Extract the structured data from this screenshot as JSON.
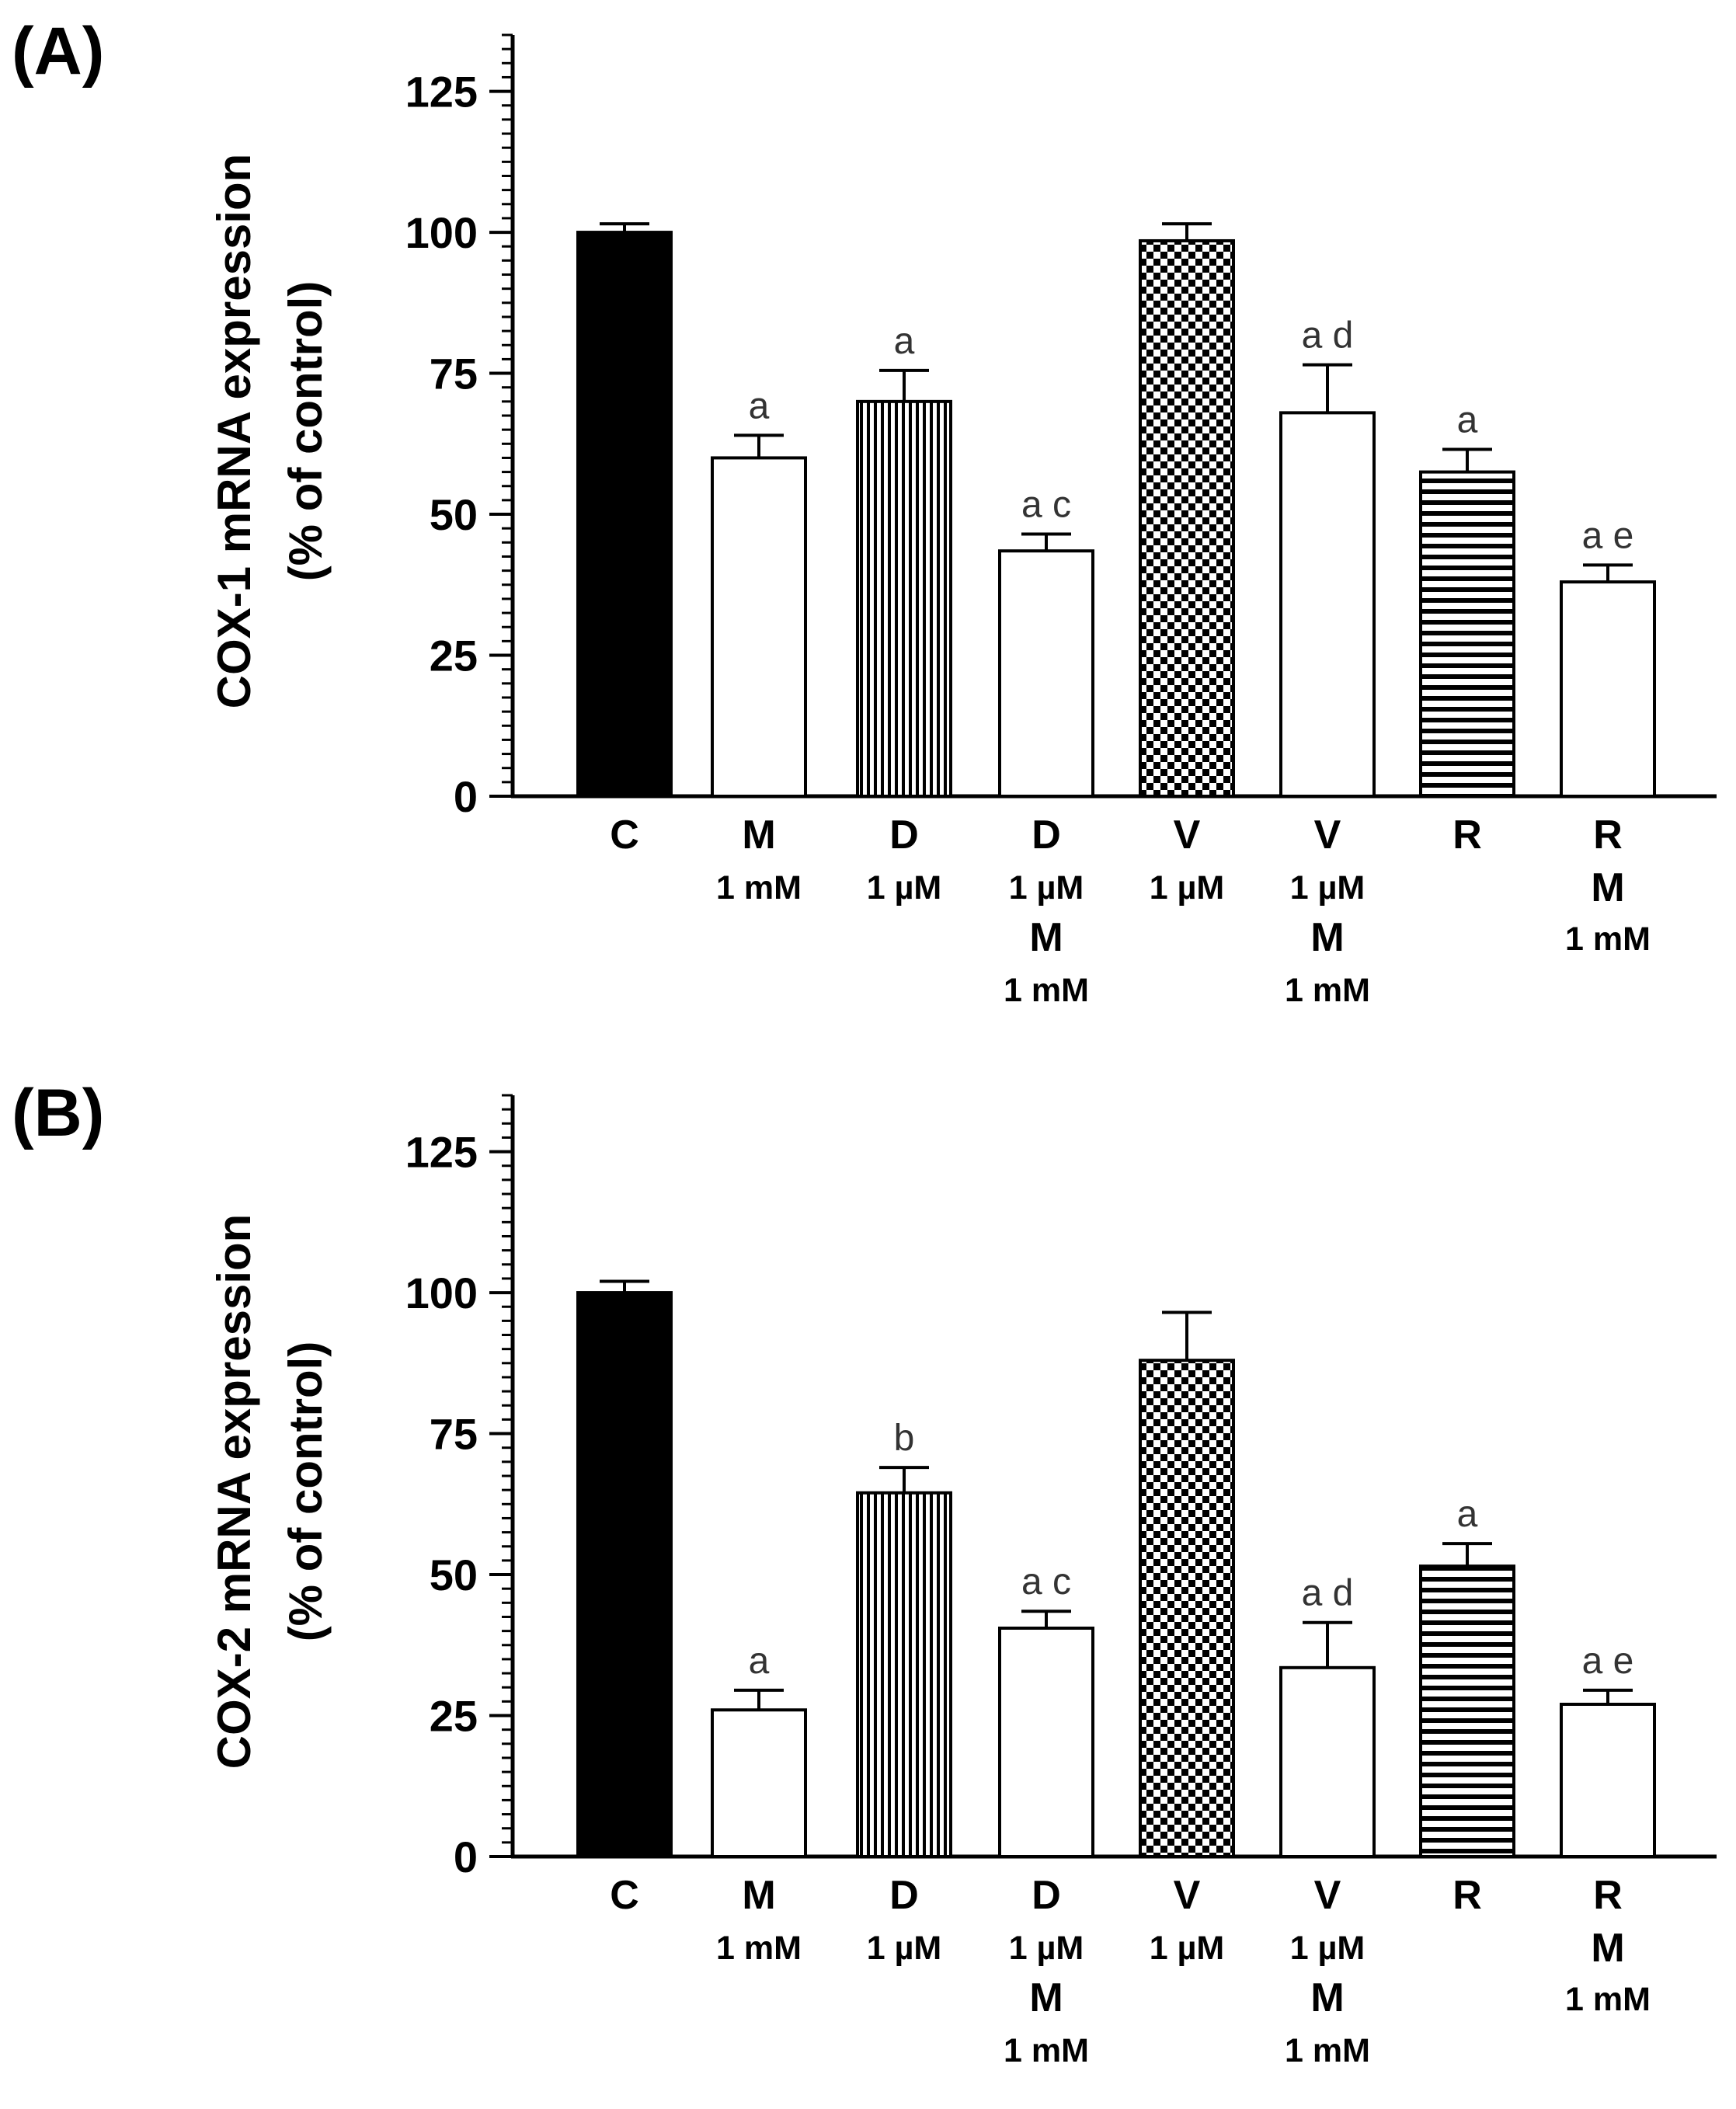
{
  "chart_data": [
    {
      "type": "bar",
      "panel_label": "(A)",
      "ylabel_line1": "COX-1 mRNA expression",
      "ylabel_line2": "(% of control)",
      "ylim": [
        0,
        135
      ],
      "yticks": [
        0,
        25,
        50,
        75,
        100,
        125
      ],
      "yticks_text": [
        "0",
        "25",
        "50",
        "75",
        "100",
        "125"
      ],
      "categories": [
        {
          "lines": [
            "C"
          ]
        },
        {
          "lines": [
            "M",
            "1 mM"
          ]
        },
        {
          "lines": [
            "D",
            "1 µM"
          ]
        },
        {
          "lines": [
            "D",
            "1 µM",
            "M",
            "1 mM"
          ]
        },
        {
          "lines": [
            "V",
            "1 µM"
          ]
        },
        {
          "lines": [
            "V",
            "1 µM",
            "M",
            "1 mM"
          ]
        },
        {
          "lines": [
            "R"
          ]
        },
        {
          "lines": [
            "R",
            "M",
            "1 mM"
          ]
        }
      ],
      "values": [
        100,
        60,
        70,
        43.5,
        98.5,
        68,
        57.5,
        38
      ],
      "errors": [
        1.5,
        4,
        5.5,
        3,
        3,
        8.5,
        4,
        3
      ],
      "patterns": [
        "solid",
        "none",
        "vertical",
        "none",
        "checker",
        "none",
        "horizontal",
        "none"
      ],
      "annotations": [
        "",
        "a",
        "a",
        "a c",
        "",
        "a d",
        "a",
        "a e"
      ]
    },
    {
      "type": "bar",
      "panel_label": "(B)",
      "ylabel_line1": "COX-2 mRNA expression",
      "ylabel_line2": "(% of control)",
      "ylim": [
        0,
        135
      ],
      "yticks": [
        0,
        25,
        50,
        75,
        100,
        125
      ],
      "yticks_text": [
        "0",
        "25",
        "50",
        "75",
        "100",
        "125"
      ],
      "categories": [
        {
          "lines": [
            "C"
          ]
        },
        {
          "lines": [
            "M",
            "1 mM"
          ]
        },
        {
          "lines": [
            "D",
            "1 µM"
          ]
        },
        {
          "lines": [
            "D",
            "1 µM",
            "M",
            "1 mM"
          ]
        },
        {
          "lines": [
            "V",
            "1 µM"
          ]
        },
        {
          "lines": [
            "V",
            "1 µM",
            "M",
            "1 mM"
          ]
        },
        {
          "lines": [
            "R"
          ]
        },
        {
          "lines": [
            "R",
            "M",
            "1 mM"
          ]
        }
      ],
      "values": [
        100,
        26,
        64.5,
        40.5,
        88,
        33.5,
        51.5,
        27
      ],
      "errors": [
        2,
        3.5,
        4.5,
        3,
        8.5,
        8,
        4,
        2.5
      ],
      "patterns": [
        "solid",
        "none",
        "vertical",
        "none",
        "checker",
        "none",
        "horizontal",
        "none"
      ],
      "annotations": [
        "",
        "a",
        "b",
        "a c",
        "",
        "a d",
        "a",
        "a e"
      ]
    }
  ]
}
